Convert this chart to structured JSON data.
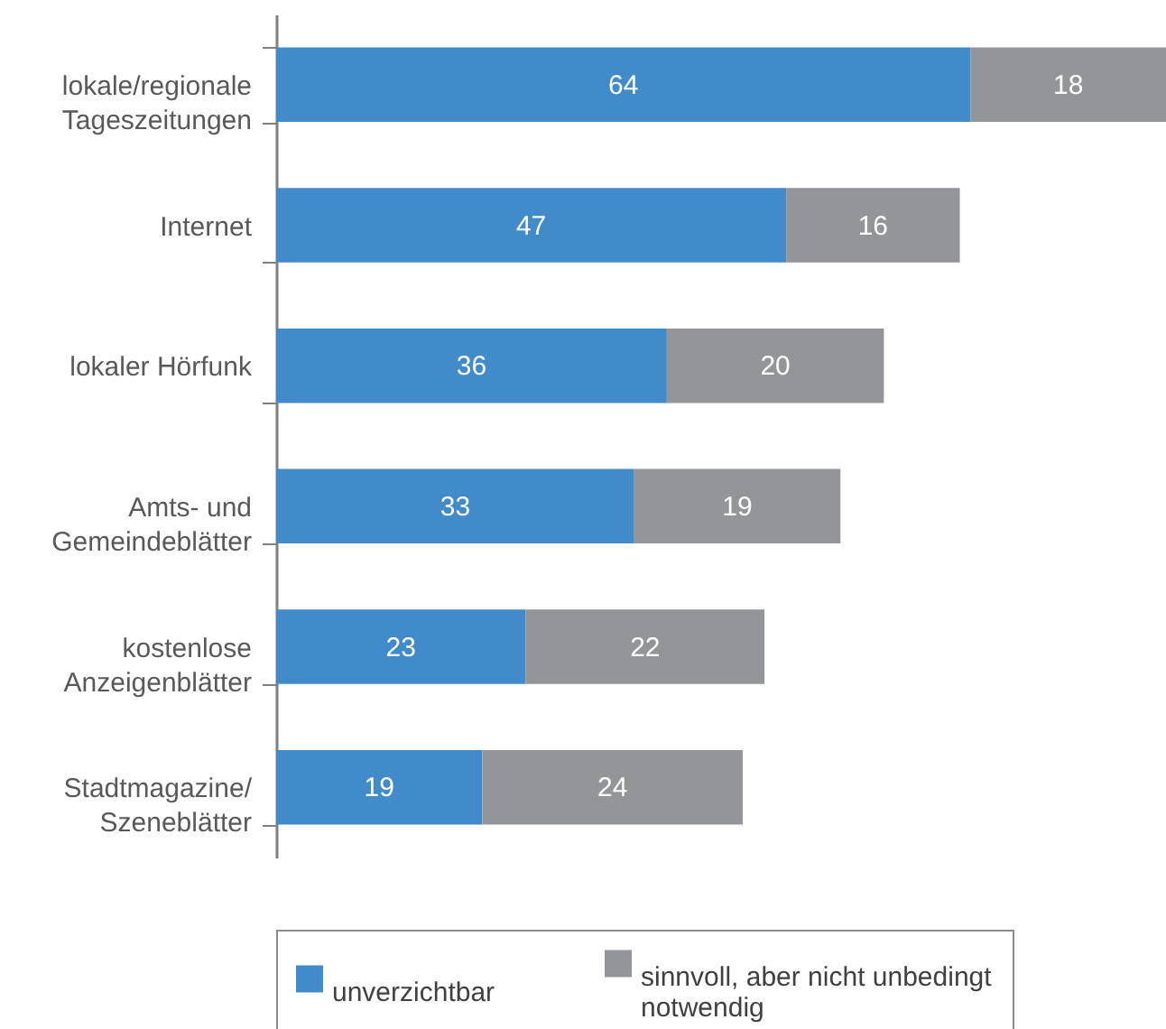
{
  "chart_data": {
    "type": "bar",
    "orientation": "horizontal",
    "stacked": true,
    "categories": [
      "lokale/regionale Tageszeitungen",
      "Internet",
      "lokaler Hörfunk",
      "Amts- und Gemeindeblätter",
      "kostenlose Anzeigenblätter",
      "Stadtmagazine/Szeneblätter"
    ],
    "series": [
      {
        "name": "unverzichtbar",
        "color": "#428bca",
        "values": [
          64,
          47,
          36,
          33,
          23,
          19
        ]
      },
      {
        "name": "sinnvoll, aber nicht unbedingt notwendig",
        "color": "#939598",
        "values": [
          18,
          16,
          20,
          19,
          22,
          24
        ]
      }
    ],
    "data_labels": true,
    "legend": "bottom",
    "tick_labels": "y"
  }
}
